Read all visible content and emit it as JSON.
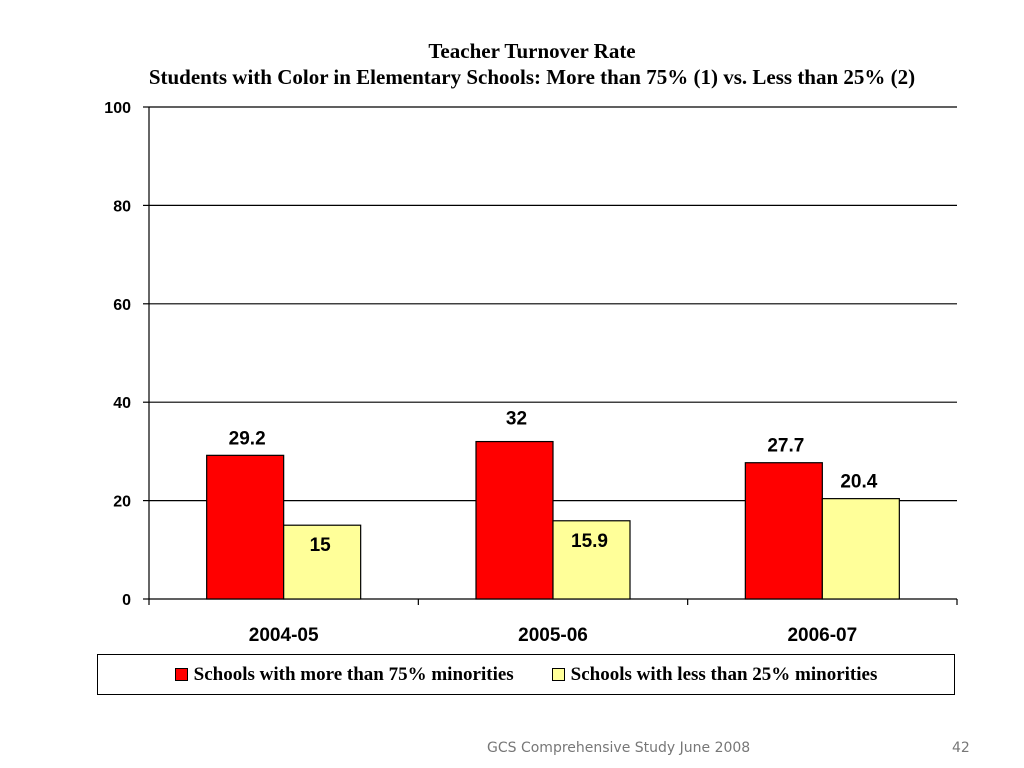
{
  "chart_data": {
    "type": "bar",
    "title": "Teacher Turnover Rate",
    "subtitle": "Students with Color in Elementary Schools: More than 75% (1) vs. Less than 25% (2)",
    "categories": [
      "2004-05",
      "2005-06",
      "2006-07"
    ],
    "series": [
      {
        "name": "Schools with more than 75% minorities",
        "values": [
          29.2,
          32,
          27.7
        ],
        "color": "#ff0000"
      },
      {
        "name": "Schools with less than 25% minorities",
        "values": [
          15,
          15.9,
          20.4
        ],
        "color": "#ffff99"
      }
    ],
    "data_labels": [
      [
        "29.2",
        "32",
        "27.7"
      ],
      [
        "15",
        "15.9",
        "20.4"
      ]
    ],
    "y_ticks": [
      0,
      20,
      40,
      60,
      80,
      100
    ],
    "y_tick_labels": [
      "0",
      "20",
      "40",
      "60",
      "80",
      "100"
    ],
    "ylim": [
      0,
      100
    ],
    "grid": true,
    "legend_position": "bottom"
  },
  "footer": {
    "source": "GCS Comprehensive Study June 2008",
    "page_number": "42"
  }
}
